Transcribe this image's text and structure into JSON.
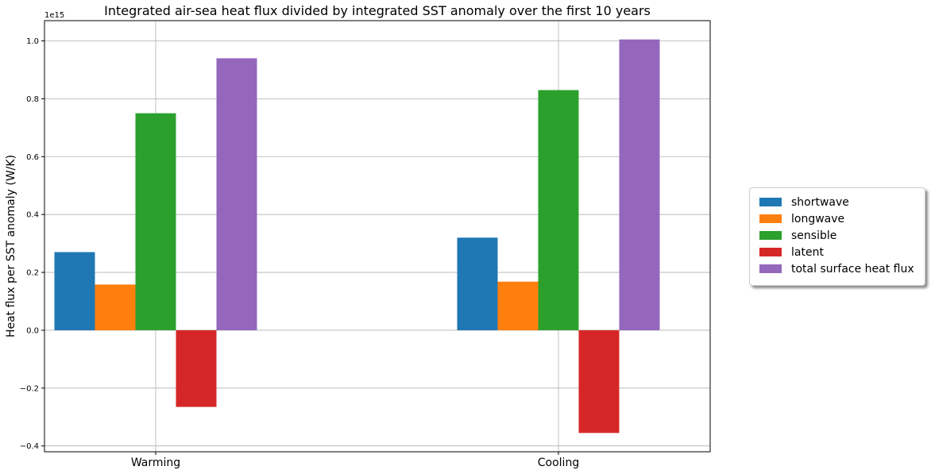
{
  "chart_data": {
    "type": "bar",
    "title": "Integrated air-sea heat flux divided by integrated SST anomaly over the first 10 years",
    "xlabel": "",
    "ylabel": "Heat flux per SST anomaly (W/K)",
    "offset_text": "1e15",
    "categories": [
      "Warming",
      "Cooling"
    ],
    "ylim": [
      -0.42,
      1.07
    ],
    "yticks": [
      -0.4,
      -0.2,
      0.0,
      0.2,
      0.4,
      0.6,
      0.8,
      1.0
    ],
    "ytick_labels": [
      "−0.4",
      "−0.2",
      "0.0",
      "0.2",
      "0.4",
      "0.6",
      "0.8",
      "1.0"
    ],
    "grid": true,
    "legend_position": "right, outside plot",
    "series": [
      {
        "name": "shortwave",
        "color": "#1f77b4",
        "values": [
          0.27,
          0.32
        ]
      },
      {
        "name": "longwave",
        "color": "#ff7f0e",
        "values": [
          0.158,
          0.168
        ]
      },
      {
        "name": "sensible",
        "color": "#2ca02c",
        "values": [
          0.75,
          0.83
        ]
      },
      {
        "name": "latent",
        "color": "#d62728",
        "values": [
          -0.265,
          -0.355
        ]
      },
      {
        "name": "total surface heat flux",
        "color": "#9467bd",
        "values": [
          0.94,
          1.005
        ]
      }
    ]
  }
}
